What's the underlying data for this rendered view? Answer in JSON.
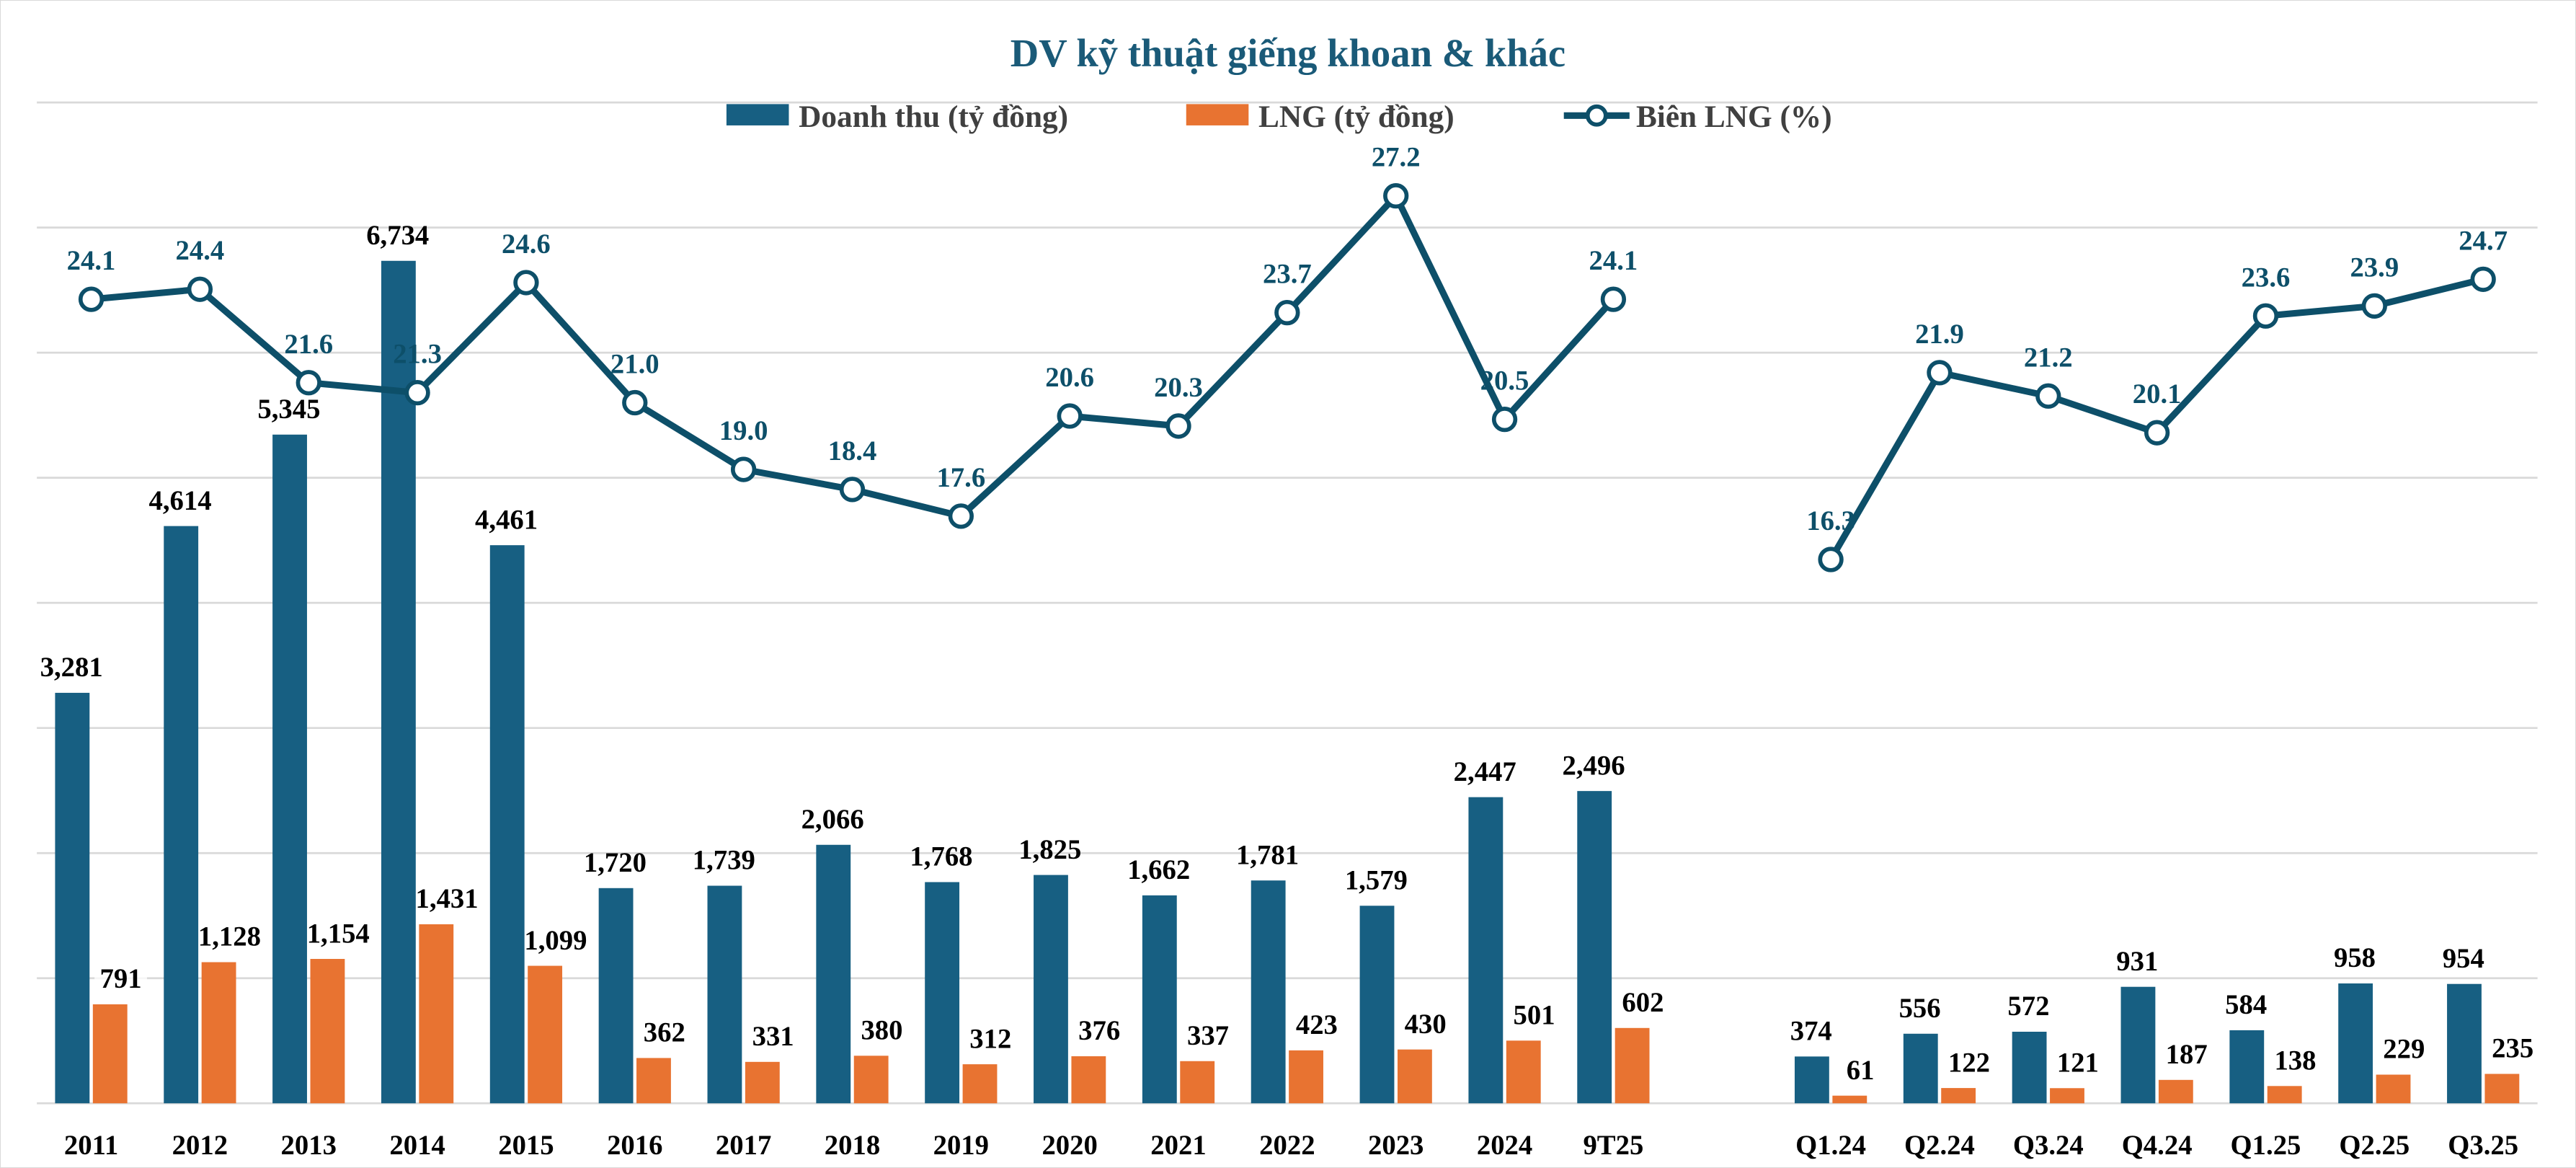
{
  "chart_data": {
    "type": "bar",
    "title": "DV kỹ thuật giếng khoan & khác",
    "categories": [
      "2011",
      "2012",
      "2013",
      "2014",
      "2015",
      "2016",
      "2017",
      "2018",
      "2019",
      "2020",
      "2021",
      "2022",
      "2023",
      "2024",
      "9T25",
      "",
      "Q1.24",
      "Q2.24",
      "Q3.24",
      "Q4.24",
      "Q1.25",
      "Q2.25",
      "Q3.25"
    ],
    "series": [
      {
        "name": "Doanh thu (tỷ đồng)",
        "type": "bar",
        "axis": "left",
        "color": "#175f82",
        "values": [
          3281,
          4614,
          5345,
          6734,
          4461,
          1720,
          1739,
          2066,
          1768,
          1825,
          1662,
          1781,
          1579,
          2447,
          2496,
          null,
          374,
          556,
          572,
          931,
          584,
          958,
          954
        ],
        "labels": [
          "3,281",
          "4,614",
          "5,345",
          "6,734",
          "4,461",
          "1,720",
          "1,739",
          "2,066",
          "1,768",
          "1,825",
          "1,662",
          "1,781",
          "1,579",
          "2,447",
          "2,496",
          "",
          "374",
          "556",
          "572",
          "931",
          "584",
          "958",
          "954"
        ]
      },
      {
        "name": "LNG (tỷ đồng)",
        "type": "bar",
        "axis": "left",
        "color": "#e87331",
        "values": [
          791,
          1128,
          1154,
          1431,
          1099,
          362,
          331,
          380,
          312,
          376,
          337,
          423,
          430,
          501,
          602,
          null,
          61,
          122,
          121,
          187,
          138,
          229,
          235
        ],
        "labels": [
          "791",
          "1,128",
          "1,154",
          "1,431",
          "1,099",
          "362",
          "331",
          "380",
          "312",
          "376",
          "337",
          "423",
          "430",
          "501",
          "602",
          "",
          "61",
          "122",
          "121",
          "187",
          "138",
          "229",
          "235"
        ]
      },
      {
        "name": "Biên LNG (%)",
        "type": "line",
        "axis": "right",
        "color": "#0d4f69",
        "values": [
          24.1,
          24.4,
          21.6,
          21.3,
          24.6,
          21.0,
          19.0,
          18.4,
          17.6,
          20.6,
          20.3,
          23.7,
          27.2,
          20.5,
          24.1,
          null,
          16.3,
          21.9,
          21.2,
          20.1,
          23.6,
          23.9,
          24.7
        ],
        "labels": [
          "24.1",
          "24.4",
          "21.6",
          "21.3",
          "24.6",
          "21.0",
          "19.0",
          "18.4",
          "17.6",
          "20.6",
          "20.3",
          "23.7",
          "27.2",
          "20.5",
          "24.1",
          "",
          "16.3",
          "21.9",
          "21.2",
          "20.1",
          "23.6",
          "23.9",
          "24.7"
        ]
      }
    ],
    "ylim": [
      0,
      8000
    ],
    "y2lim": [
      0,
      30
    ],
    "grid": true,
    "legend_position": "top-center",
    "xlabel": "",
    "ylabel": ""
  }
}
